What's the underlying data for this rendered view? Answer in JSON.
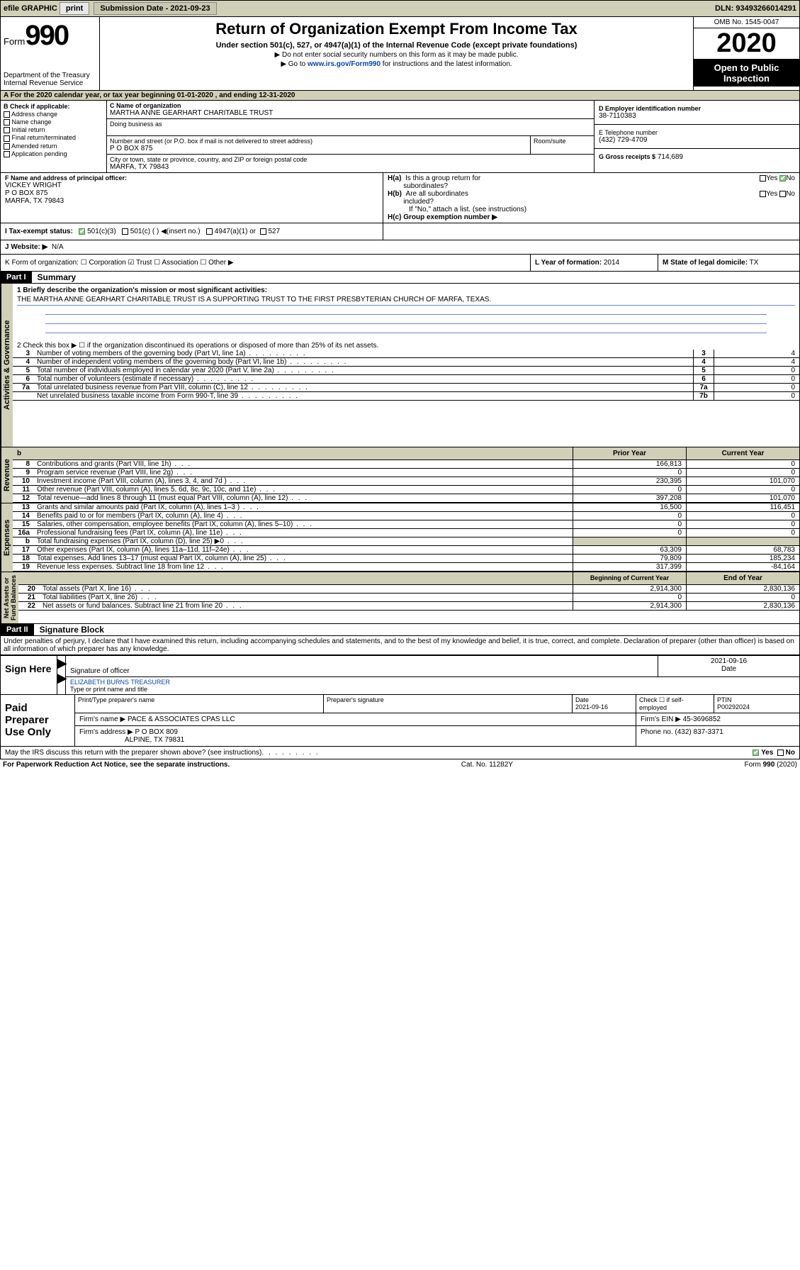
{
  "topbar": {
    "efile": "efile GRAPHIC",
    "print": "print",
    "subdate_label": "Submission Date - 2021-09-23",
    "dln": "DLN: 93493266014291"
  },
  "header": {
    "form_prefix": "Form",
    "form_num": "990",
    "dept": "Department of the Treasury\nInternal Revenue Service",
    "title": "Return of Organization Exempt From Income Tax",
    "sub": "Under section 501(c), 527, or 4947(a)(1) of the Internal Revenue Code (except private foundations)",
    "arrow1": "▶ Do not enter social security numbers on this form as it may be made public.",
    "arrow2_pre": "▶ Go to ",
    "arrow2_link": "www.irs.gov/Form990",
    "arrow2_post": " for instructions and the latest information.",
    "omb": "OMB No. 1545-0047",
    "year": "2020",
    "inspect1": "Open to Public",
    "inspect2": "Inspection"
  },
  "periodA": "A For the 2020 calendar year, or tax year beginning 01-01-2020    , and ending 12-31-2020",
  "blockB": {
    "label": "B Check if applicable:",
    "items": [
      "Address change",
      "Name change",
      "Initial return",
      "Final return/terminated",
      "Amended return",
      "Application pending"
    ]
  },
  "blockC": {
    "name_label": "C Name of organization",
    "name": "MARTHA ANNE GEARHART CHARITABLE TRUST",
    "dba_label": "Doing business as",
    "addr_label": "Number and street (or P.O. box if mail is not delivered to street address)",
    "room_label": "Room/suite",
    "addr": "P O BOX 875",
    "city_label": "City or town, state or province, country, and ZIP or foreign postal code",
    "city": "MARFA, TX  79843"
  },
  "blockD": {
    "label": "D Employer identification number",
    "val": "38-7110383"
  },
  "blockE": {
    "label": "E Telephone number",
    "val": "(432) 729-4709"
  },
  "blockG": {
    "label": "G Gross receipts $",
    "val": "714,689"
  },
  "blockF": {
    "label": "F  Name and address of principal officer:",
    "name": "VICKEY WRIGHT",
    "addr1": "P O BOX 875",
    "addr2": "MARFA, TX  79843"
  },
  "blockH": {
    "a": "H(a)  Is this a group return for subordinates?",
    "b": "H(b)  Are all subordinates included?",
    "b_note": "If \"No,\" attach a list. (see instructions)",
    "c": "H(c)  Group exemption number ▶",
    "yes": "Yes",
    "no": "No"
  },
  "blockI": {
    "label": "I   Tax-exempt status:",
    "opt1": "501(c)(3)",
    "opt2": "501(c) (  ) ◀(insert no.)",
    "opt3": "4947(a)(1) or",
    "opt4": "527"
  },
  "blockJ": {
    "label": "J   Website: ▶",
    "val": "N/A"
  },
  "blockK": "K Form of organization:  ☐ Corporation  ☑ Trust  ☐ Association  ☐ Other ▶",
  "blockL": {
    "label": "L Year of formation:",
    "val": "2014"
  },
  "blockM": {
    "label": "M State of legal domicile:",
    "val": "TX"
  },
  "part1": {
    "tag": "Part I",
    "title": "Summary"
  },
  "summary": {
    "l1": "1   Briefly describe the organization's mission or most significant activities:",
    "l1text": "THE MARTHA ANNE GEARHART CHARITABLE TRUST IS A SUPPORTING TRUST TO THE FIRST PRESBYTERIAN CHURCH OF MARFA, TEXAS.",
    "l2": "2   Check this box ▶ ☐  if the organization discontinued its operations or disposed of more than 25% of its net assets.",
    "lines": [
      {
        "n": "3",
        "desc": "Number of voting members of the governing body (Part VI, line 1a)",
        "box": "3",
        "val": "4"
      },
      {
        "n": "4",
        "desc": "Number of independent voting members of the governing body (Part VI, line 1b)",
        "box": "4",
        "val": "4"
      },
      {
        "n": "5",
        "desc": "Total number of individuals employed in calendar year 2020 (Part V, line 2a)",
        "box": "5",
        "val": "0"
      },
      {
        "n": "6",
        "desc": "Total number of volunteers (estimate if necessary)",
        "box": "6",
        "val": "0"
      },
      {
        "n": "7a",
        "desc": "Total unrelated business revenue from Part VIII, column (C), line 12",
        "box": "7a",
        "val": "0"
      },
      {
        "n": "",
        "desc": "Net unrelated business taxable income from Form 990-T, line 39",
        "box": "7b",
        "val": "0"
      }
    ],
    "hdr_b": "b",
    "hdr_prior": "Prior Year",
    "hdr_curr": "Current Year"
  },
  "revenue_label": "Revenue",
  "revenue": [
    {
      "n": "8",
      "desc": "Contributions and grants (Part VIII, line 1h)",
      "c1": "166,813",
      "c2": "0"
    },
    {
      "n": "9",
      "desc": "Program service revenue (Part VIII, line 2g)",
      "c1": "0",
      "c2": "0"
    },
    {
      "n": "10",
      "desc": "Investment income (Part VIII, column (A), lines 3, 4, and 7d )",
      "c1": "230,395",
      "c2": "101,070"
    },
    {
      "n": "11",
      "desc": "Other revenue (Part VIII, column (A), lines 5, 6d, 8c, 9c, 10c, and 11e)",
      "c1": "0",
      "c2": "0"
    },
    {
      "n": "12",
      "desc": "Total revenue—add lines 8 through 11 (must equal Part VIII, column (A), line 12)",
      "c1": "397,208",
      "c2": "101,070"
    }
  ],
  "expenses_label": "Expenses",
  "expenses": [
    {
      "n": "13",
      "desc": "Grants and similar amounts paid (Part IX, column (A), lines 1–3 )",
      "c1": "16,500",
      "c2": "116,451"
    },
    {
      "n": "14",
      "desc": "Benefits paid to or for members (Part IX, column (A), line 4)",
      "c1": "0",
      "c2": "0"
    },
    {
      "n": "15",
      "desc": "Salaries, other compensation, employee benefits (Part IX, column (A), lines 5–10)",
      "c1": "0",
      "c2": "0"
    },
    {
      "n": "16a",
      "desc": "Professional fundraising fees (Part IX, column (A), line 11e)",
      "c1": "0",
      "c2": "0"
    },
    {
      "n": "b",
      "desc": "Total fundraising expenses (Part IX, column (D), line 25) ▶0",
      "c1": "",
      "c2": "",
      "shade": true
    },
    {
      "n": "17",
      "desc": "Other expenses (Part IX, column (A), lines 11a–11d, 11f–24e)",
      "c1": "63,309",
      "c2": "68,783"
    },
    {
      "n": "18",
      "desc": "Total expenses. Add lines 13–17 (must equal Part IX, column (A), line 25)",
      "c1": "79,809",
      "c2": "185,234"
    },
    {
      "n": "19",
      "desc": "Revenue less expenses. Subtract line 18 from line 12",
      "c1": "317,399",
      "c2": "-84,164"
    }
  ],
  "netassets_label": "Net Assets or\nFund Balances",
  "nethdr": {
    "c1": "Beginning of Current Year",
    "c2": "End of Year"
  },
  "netassets": [
    {
      "n": "20",
      "desc": "Total assets (Part X, line 16)",
      "c1": "2,914,300",
      "c2": "2,830,136"
    },
    {
      "n": "21",
      "desc": "Total liabilities (Part X, line 26)",
      "c1": "0",
      "c2": "0"
    },
    {
      "n": "22",
      "desc": "Net assets or fund balances. Subtract line 21 from line 20",
      "c1": "2,914,300",
      "c2": "2,830,136"
    }
  ],
  "part2": {
    "tag": "Part II",
    "title": "Signature Block"
  },
  "perjury": "Under penalties of perjury, I declare that I have examined this return, including accompanying schedules and statements, and to the best of my knowledge and belief, it is true, correct, and complete. Declaration of preparer (other than officer) is based on all information of which preparer has any knowledge.",
  "sign": {
    "here": "Sign Here",
    "date": "2021-09-16",
    "sig_label": "Signature of officer",
    "date_label": "Date",
    "name": "ELIZABETH BURNS  TREASURER",
    "name_label": "Type or print name and title"
  },
  "paid": {
    "label": "Paid Preparer Use Only",
    "h1": "Print/Type preparer's name",
    "h2": "Preparer's signature",
    "h3": "Date",
    "h4": "Check ☐ if self-employed",
    "h5": "PTIN",
    "date": "2021-09-16",
    "ptin": "P00292024",
    "firm_label": "Firm's name    ▶",
    "firm": "PACE & ASSOCIATES CPAS LLC",
    "ein_label": "Firm's EIN ▶",
    "ein": "45-3696852",
    "addr_label": "Firm's address ▶",
    "addr1": "P O BOX 809",
    "addr2": "ALPINE, TX  79831",
    "phone_label": "Phone no.",
    "phone": "(432) 837-3371"
  },
  "discuss": "May the IRS discuss this return with the preparer shown above? (see instructions)",
  "footer": {
    "left": "For Paperwork Reduction Act Notice, see the separate instructions.",
    "mid": "Cat. No. 11282Y",
    "right": "Form 990 (2020)"
  },
  "dots": "   .    .    .    .    .    .    .    .    ."
}
